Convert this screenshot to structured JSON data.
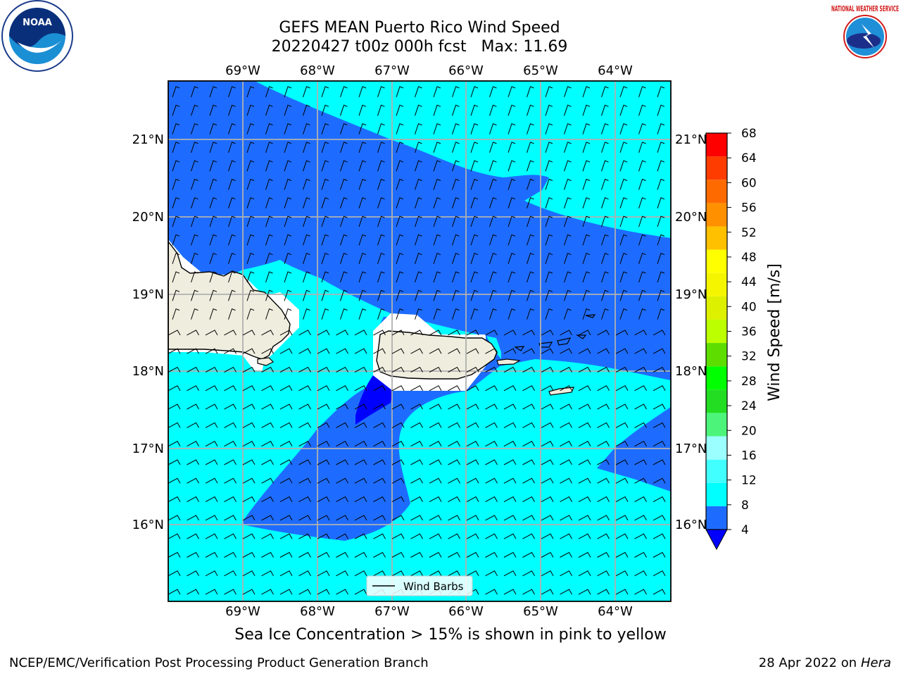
{
  "title": {
    "line1": "GEFS MEAN Puerto Rico Wind Speed",
    "line2": "20220427 t00z 000h fcst   Max: 11.69"
  },
  "map": {
    "lon_labels": [
      "69°W",
      "68°W",
      "67°W",
      "66°W",
      "65°W",
      "64°W"
    ],
    "lat_labels": [
      "21°N",
      "20°N",
      "19°N",
      "18°N",
      "17°N",
      "16°N"
    ],
    "legend_label": "Wind Barbs"
  },
  "colorbar": {
    "label": "Wind Speed [m/s]",
    "ticks": [
      "4",
      "8",
      "12",
      "16",
      "20",
      "24",
      "28",
      "32",
      "36",
      "40",
      "44",
      "48",
      "52",
      "56",
      "60",
      "64",
      "68"
    ],
    "colors": [
      "#1e6cff",
      "#00ffff",
      "#42ffff",
      "#9cffff",
      "#4cf57a",
      "#22dd22",
      "#00ff00",
      "#5dde00",
      "#bbff00",
      "#ddf000",
      "#f5f500",
      "#ffff00",
      "#ffc000",
      "#ff9000",
      "#ff6a00",
      "#ff3c00",
      "#ff0000"
    ],
    "below_color": "#0000ff"
  },
  "logos": {
    "noaa": "NOAA",
    "nws": "NATIONAL WEATHER SERVICE"
  },
  "caption": "Sea Ice Concentration > 15% is shown in pink to yellow",
  "footer": {
    "left": "NCEP/EMC/Verification Post Processing Product Generation Branch",
    "date": "28 Apr 2022 on",
    "machine": "Hera"
  }
}
